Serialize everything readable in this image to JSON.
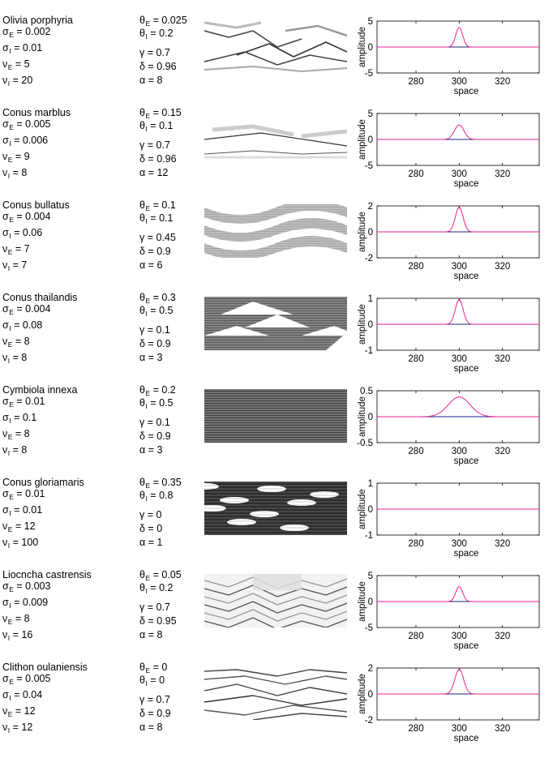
{
  "panels": [
    {
      "species": "Olivia porphyria",
      "sigmaE": "0.002",
      "sigmaI": "0.01",
      "nuE": "5",
      "nuI": "20",
      "thetaE": "0.025",
      "thetaI": "0.2",
      "gamma": "0.7",
      "delta": "0.96",
      "alpha": "8",
      "pattern": "lines-sparse",
      "chart": {
        "peak": 3.8,
        "width": 1.6,
        "yticks": [
          "5",
          "0",
          "-5"
        ],
        "ylim": [
          -5,
          5
        ]
      }
    },
    {
      "species": "Conus marblus",
      "sigmaE": "0.005",
      "sigmaI": "0.006",
      "nuE": "9",
      "nuI": "8",
      "thetaE": "0.15",
      "thetaI": "0.1",
      "gamma": "0.7",
      "delta": "0.96",
      "alpha": "12",
      "pattern": "faint-lines",
      "chart": {
        "peak": 2.8,
        "width": 2.2,
        "yticks": [
          "5",
          "0",
          "-5"
        ],
        "ylim": [
          -5,
          5
        ]
      }
    },
    {
      "species": "Conus bullatus",
      "sigmaE": "0.004",
      "sigmaI": "0.06",
      "nuE": "7",
      "nuI": "7",
      "thetaE": "0.1",
      "thetaI": "0.1",
      "gamma": "0.45",
      "delta": "0.9",
      "alpha": "6",
      "pattern": "net",
      "chart": {
        "peak": 1.9,
        "width": 1.8,
        "yticks": [
          "2",
          "0",
          "-2"
        ],
        "ylim": [
          -2,
          2
        ]
      }
    },
    {
      "species": "Conus thailandis",
      "sigmaE": "0.004",
      "sigmaI": "0.08",
      "nuE": "8",
      "nuI": "8",
      "thetaE": "0.3",
      "thetaI": "0.5",
      "gamma": "0.1",
      "delta": "0.9",
      "alpha": "3",
      "pattern": "triangles",
      "chart": {
        "peak": 0.95,
        "width": 1.8,
        "yticks": [
          "1",
          "0",
          "-1"
        ],
        "ylim": [
          -1,
          1
        ]
      }
    },
    {
      "species": "Cymbiola innexa",
      "sigmaE": "0.01",
      "sigmaI": "0.1",
      "nuE": "8",
      "nuI": "8",
      "thetaE": "0.2",
      "thetaI": "0.5",
      "gamma": "0.1",
      "delta": "0.9",
      "alpha": "3",
      "pattern": "stripes",
      "chart": {
        "peak": 0.38,
        "width": 5.0,
        "yticks": [
          "0.5",
          "0",
          "-0.5"
        ],
        "ylim": [
          -0.5,
          0.5
        ]
      }
    },
    {
      "species": "Conus gloriamaris",
      "sigmaE": "0.01",
      "sigmaI": "0.01",
      "nuE": "12",
      "nuI": "100",
      "thetaE": "0.35",
      "thetaI": "0.8",
      "gamma": "0",
      "delta": "0",
      "alpha": "1",
      "pattern": "dense",
      "chart": {
        "peak": 0.0,
        "width": 2.0,
        "yticks": [
          "1",
          "0",
          "-1"
        ],
        "ylim": [
          -1,
          1
        ]
      }
    },
    {
      "species": "Liocncha castrensis",
      "sigmaE": "0.003",
      "sigmaI": "0.009",
      "nuE": "8",
      "nuI": "16",
      "thetaE": "0.05",
      "thetaI": "0.2",
      "gamma": "0.7",
      "delta": "0.95",
      "alpha": "8",
      "pattern": "tents",
      "chart": {
        "peak": 2.9,
        "width": 1.6,
        "yticks": [
          "5",
          "0",
          "-5"
        ],
        "ylim": [
          -5,
          5
        ]
      }
    },
    {
      "species": "Clithon oulaniensis",
      "sigmaE": "0.005",
      "sigmaI": "0.04",
      "nuE": "12",
      "nuI": "12",
      "thetaE": "0",
      "thetaI": "0",
      "gamma": "0.7",
      "delta": "0.9",
      "alpha": "8",
      "pattern": "crossing",
      "chart": {
        "peak": 1.9,
        "width": 2.0,
        "yticks": [
          "2",
          "0",
          "-2"
        ],
        "ylim": [
          -2,
          2
        ]
      }
    }
  ],
  "chart_data": {
    "type": "line",
    "xlabel": "space",
    "ylabel": "amplitude",
    "xlim": [
      262,
      337
    ],
    "xticks": [
      "280",
      "300",
      "320"
    ],
    "xtick_values": [
      280,
      300,
      320
    ],
    "center": 300,
    "series_color": "#e8218f",
    "baseline_color": "#1a237e"
  }
}
